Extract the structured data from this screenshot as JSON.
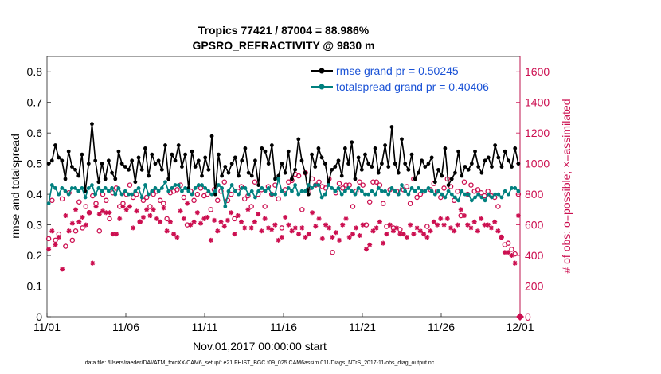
{
  "chart_data": {
    "type": "line",
    "title_line1": "Tropics 77421 / 87004 = 88.986%",
    "title_line2": "GPSRO_REFRACTIVITY @ 9830 m",
    "xlabel": "Nov.01,2017 00:00:00 start",
    "ylabel": "rmse and totalspread",
    "ylabel_right": "# of obs: o=possible; ×=assimilated",
    "x_ticks": [
      "11/01",
      "11/06",
      "11/11",
      "11/16",
      "11/21",
      "11/26",
      "12/01"
    ],
    "xlim": [
      0,
      30
    ],
    "ylim": [
      0,
      0.85
    ],
    "y_ticks": [
      "0",
      "0.1",
      "0.2",
      "0.3",
      "0.4",
      "0.5",
      "0.6",
      "0.7",
      "0.8"
    ],
    "ylim_right": [
      0,
      1700
    ],
    "y_ticks_right": [
      "0",
      "200",
      "400",
      "600",
      "800",
      "1000",
      "1200",
      "1400",
      "1600"
    ],
    "footnote": "data file: /Users/raeder/DAI/ATM_forcXX/CAM6_setup/f.e21.FHIST_BGC.f09_025.CAM6assim.011/Diags_NTrS_2017-11/obs_diag_output.nc",
    "series": [
      {
        "name": "rmse grand pr = 0.50245",
        "color": "#000000",
        "marker": "dot",
        "values": [
          0.5,
          0.51,
          0.56,
          0.52,
          0.51,
          0.45,
          0.54,
          0.49,
          0.48,
          0.46,
          0.53,
          0.41,
          0.5,
          0.63,
          0.51,
          0.44,
          0.5,
          0.45,
          0.51,
          0.47,
          0.45,
          0.54,
          0.5,
          0.49,
          0.48,
          0.51,
          0.44,
          0.52,
          0.48,
          0.55,
          0.46,
          0.53,
          0.5,
          0.51,
          0.48,
          0.56,
          0.45,
          0.53,
          0.51,
          0.56,
          0.49,
          0.53,
          0.42,
          0.54,
          0.49,
          0.51,
          0.46,
          0.52,
          0.48,
          0.59,
          0.4,
          0.53,
          0.46,
          0.49,
          0.47,
          0.5,
          0.52,
          0.46,
          0.51,
          0.55,
          0.47,
          0.46,
          0.51,
          0.43,
          0.55,
          0.54,
          0.5,
          0.56,
          0.45,
          0.46,
          0.5,
          0.47,
          0.54,
          0.45,
          0.48,
          0.58,
          0.51,
          0.47,
          0.4,
          0.53,
          0.49,
          0.55,
          0.52,
          0.5,
          0.44,
          0.48,
          0.49,
          0.51,
          0.46,
          0.55,
          0.5,
          0.57,
          0.45,
          0.52,
          0.48,
          0.53,
          0.5,
          0.49,
          0.55,
          0.47,
          0.5,
          0.56,
          0.49,
          0.62,
          0.5,
          0.47,
          0.58,
          0.5,
          0.48,
          0.53,
          0.45,
          0.47,
          0.51,
          0.49,
          0.5,
          0.52,
          0.44,
          0.48,
          0.46,
          0.55,
          0.43,
          0.45,
          0.47,
          0.54,
          0.46,
          0.49,
          0.48,
          0.5,
          0.54,
          0.49,
          0.47,
          0.51,
          0.52,
          0.49,
          0.56,
          0.52,
          0.49,
          0.54,
          0.51,
          0.49,
          0.55,
          0.5
        ]
      },
      {
        "name": "totalspread grand pr = 0.40406",
        "color": "#00807f",
        "marker": "dot",
        "values": [
          0.37,
          0.43,
          0.42,
          0.4,
          0.42,
          0.41,
          0.4,
          0.42,
          0.42,
          0.41,
          0.42,
          0.39,
          0.42,
          0.43,
          0.4,
          0.42,
          0.41,
          0.42,
          0.41,
          0.42,
          0.4,
          0.42,
          0.4,
          0.41,
          0.4,
          0.4,
          0.41,
          0.42,
          0.39,
          0.43,
          0.4,
          0.41,
          0.42,
          0.41,
          0.42,
          0.44,
          0.41,
          0.42,
          0.43,
          0.43,
          0.41,
          0.42,
          0.41,
          0.4,
          0.42,
          0.43,
          0.43,
          0.42,
          0.41,
          0.4,
          0.41,
          0.43,
          0.42,
          0.36,
          0.41,
          0.43,
          0.41,
          0.4,
          0.42,
          0.42,
          0.4,
          0.41,
          0.39,
          0.41,
          0.42,
          0.41,
          0.42,
          0.4,
          0.4,
          0.45,
          0.41,
          0.4,
          0.42,
          0.41,
          0.43,
          0.4,
          0.41,
          0.41,
          0.43,
          0.42,
          0.43,
          0.43,
          0.39,
          0.4,
          0.43,
          0.42,
          0.41,
          0.42,
          0.4,
          0.41,
          0.42,
          0.41,
          0.4,
          0.42,
          0.41,
          0.4,
          0.4,
          0.41,
          0.4,
          0.42,
          0.41,
          0.41,
          0.4,
          0.42,
          0.41,
          0.4,
          0.43,
          0.41,
          0.4,
          0.42,
          0.41,
          0.42,
          0.41,
          0.41,
          0.42,
          0.41,
          0.4,
          0.41,
          0.4,
          0.39,
          0.41,
          0.4,
          0.39,
          0.38,
          0.41,
          0.4,
          0.4,
          0.38,
          0.39,
          0.4,
          0.39,
          0.38,
          0.4,
          0.39,
          0.4,
          0.4,
          0.39,
          0.41,
          0.4,
          0.42,
          0.42,
          0.41
        ]
      }
    ],
    "obs_possible": {
      "name": "possible",
      "color": "#cc0f50",
      "marker": "circle",
      "values": [
        510,
        760,
        500,
        540,
        770,
        460,
        810,
        500,
        560,
        750,
        580,
        720,
        680,
        790,
        740,
        560,
        800,
        760,
        640,
        810,
        840,
        720,
        740,
        800,
        860,
        780,
        800,
        620,
        760,
        780,
        720,
        800,
        820,
        760,
        740,
        640,
        810,
        820,
        830,
        860,
        780,
        600,
        820,
        760,
        800,
        840,
        790,
        800,
        700,
        830,
        760,
        820,
        880,
        760,
        800,
        640,
        820,
        850,
        770,
        790,
        720,
        880,
        800,
        830,
        720,
        850,
        800,
        860,
        770,
        580,
        830,
        880,
        890,
        930,
        920,
        700,
        940,
        820,
        900,
        860,
        880,
        850,
        840,
        900,
        420,
        810,
        870,
        840,
        860,
        860,
        720,
        820,
        880,
        860,
        600,
        750,
        880,
        880,
        860,
        740,
        590,
        830,
        580,
        820,
        570,
        830,
        850,
        740,
        900,
        780,
        800,
        820,
        590,
        830,
        870,
        820,
        780,
        840,
        900,
        850,
        760,
        820,
        660,
        880,
        800,
        860,
        820,
        830,
        810,
        790,
        820,
        790,
        780,
        720,
        520,
        470,
        480,
        440,
        410,
        800
      ]
    },
    "obs_assimilated": {
      "name": "assimilated",
      "color": "#cc0f50",
      "marker": "star",
      "values": [
        440,
        560,
        470,
        520,
        310,
        660,
        560,
        610,
        700,
        620,
        650,
        600,
        680,
        350,
        720,
        670,
        690,
        680,
        680,
        540,
        540,
        640,
        720,
        700,
        720,
        580,
        690,
        620,
        650,
        700,
        660,
        700,
        640,
        620,
        710,
        560,
        620,
        540,
        520,
        690,
        640,
        740,
        600,
        620,
        680,
        610,
        640,
        650,
        500,
        630,
        560,
        620,
        590,
        630,
        680,
        540,
        660,
        620,
        580,
        700,
        580,
        620,
        670,
        560,
        640,
        580,
        570,
        600,
        500,
        520,
        650,
        600,
        560,
        580,
        540,
        580,
        520,
        540,
        680,
        590,
        640,
        510,
        600,
        580,
        520,
        550,
        500,
        600,
        640,
        520,
        540,
        580,
        530,
        600,
        440,
        470,
        560,
        580,
        620,
        480,
        540,
        600,
        560,
        580,
        540,
        540,
        520,
        600,
        540,
        580,
        560,
        540,
        520,
        560,
        620,
        600,
        640,
        600,
        640,
        580,
        560,
        600,
        700,
        660,
        600,
        580,
        620,
        560,
        640,
        600,
        600,
        580,
        620,
        560,
        520,
        420,
        420,
        400,
        350,
        660
      ]
    }
  }
}
